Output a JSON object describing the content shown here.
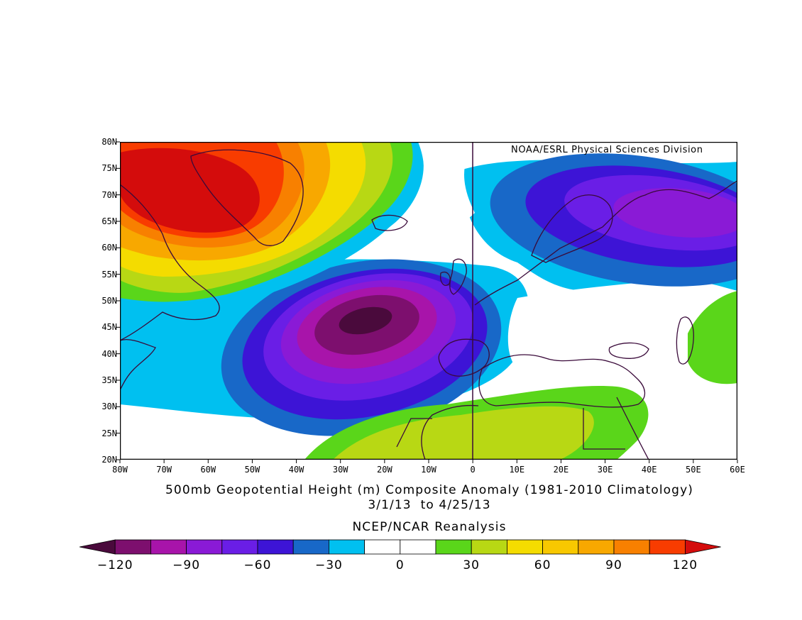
{
  "map": {
    "credit": "NOAA/ESRL Physical Sciences Division",
    "title": "500mb Geopotential Height (m) Composite Anomaly (1981-2010 Climatology)",
    "dates": "3/1/13  to 4/25/13",
    "source": "NCEP/NCAR Reanalysis",
    "lat_labels": [
      "80N",
      "75N",
      "70N",
      "65N",
      "60N",
      "55N",
      "50N",
      "45N",
      "40N",
      "35N",
      "30N",
      "25N",
      "20N"
    ],
    "lon_labels": [
      "80W",
      "70W",
      "60W",
      "50W",
      "40W",
      "30W",
      "20W",
      "10W",
      "0",
      "10E",
      "20E",
      "30E",
      "40E",
      "50E",
      "60E"
    ]
  },
  "colorbar": {
    "colors": [
      "#4a0a3c",
      "#7d0f6e",
      "#a814aa",
      "#8a1ad6",
      "#6a1ee6",
      "#3d14d6",
      "#1868c8",
      "#00c0f0",
      "#ffffff",
      "#ffffff",
      "#5ad61a",
      "#b8d814",
      "#f4dc00",
      "#f8c800",
      "#f8a800",
      "#f88000",
      "#f83c00",
      "#d40c0c"
    ],
    "labels": [
      "-120",
      "-90",
      "-60",
      "-30",
      "0",
      "30",
      "60",
      "90",
      "120"
    ]
  }
}
